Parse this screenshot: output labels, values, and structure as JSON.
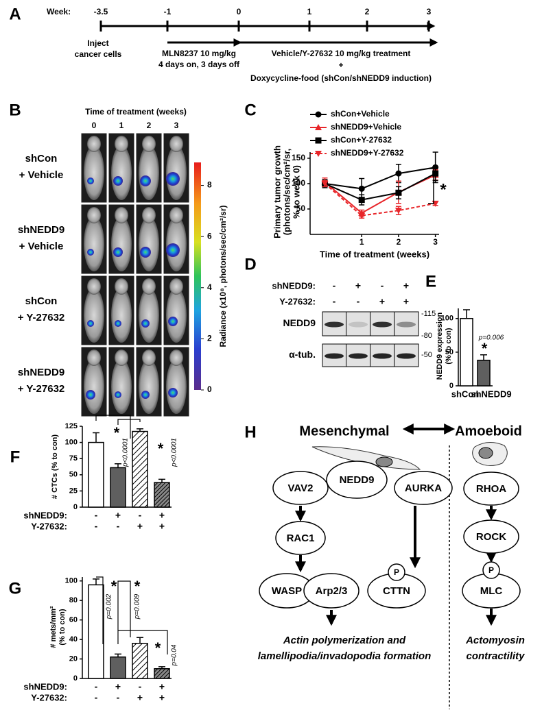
{
  "panel_labels": [
    "A",
    "B",
    "C",
    "D",
    "E",
    "F",
    "G",
    "H"
  ],
  "timeline": {
    "week_label": "Week:",
    "weeks": [
      "-3.5",
      "-1",
      "0",
      "1",
      "2",
      "3"
    ],
    "notes": [
      [
        "Inject",
        "cancer cells"
      ],
      [
        "MLN8237 10 mg/kg",
        "4 days on, 3 days off"
      ],
      [
        "Vehicle/Y-27632 10 mg/kg treatment",
        "+",
        "Doxycycline-food (shCon/shNEDD9 induction)"
      ]
    ]
  },
  "imaging": {
    "title": "Time of treatment (weeks)",
    "columns": [
      "0",
      "1",
      "2",
      "3"
    ],
    "rows": [
      [
        "shCon",
        "+ Vehicle"
      ],
      [
        "shNEDD9",
        "+ Vehicle"
      ],
      [
        "shCon",
        "+ Y-27632"
      ],
      [
        "shNEDD9",
        "+ Y-27632"
      ]
    ],
    "colorbar": {
      "label": "Radiance (x10⁸, photons/sec/cm²/sr)",
      "lim": [
        0,
        8.9
      ],
      "ticks": [
        0,
        2,
        4,
        6,
        8
      ]
    }
  },
  "tumor_growth": {
    "type": "line",
    "xlabel": "Time of treatment (weeks)",
    "ylabel": [
      "Primary tumor growth",
      "(photons/sec/cm²/sr,",
      "% to week 0)"
    ],
    "x": [
      0,
      1,
      2,
      3
    ],
    "xlim": [
      -0.4,
      3.1
    ],
    "xticks": [
      1,
      2,
      3
    ],
    "ylim": [
      0,
      162
    ],
    "yticks": [
      50,
      100,
      150
    ],
    "series": [
      {
        "name": "shCon+Vehicle",
        "color": "#000000",
        "marker": "circle",
        "dashed": false,
        "values": [
          100,
          90,
          120,
          132
        ],
        "errors": [
          8,
          20,
          18,
          30
        ]
      },
      {
        "name": "shNEDD9+Vehicle",
        "color": "#e8262a",
        "marker": "triangle-up",
        "dashed": false,
        "values": [
          103,
          42,
          83,
          117
        ],
        "errors": [
          8,
          6,
          22,
          10
        ]
      },
      {
        "name": "shCon+Y-27632",
        "color": "#000000",
        "marker": "square",
        "dashed": false,
        "values": [
          100,
          68,
          82,
          120
        ],
        "errors": [
          6,
          10,
          12,
          14
        ]
      },
      {
        "name": "shNEDD9+Y-27632",
        "color": "#e8262a",
        "marker": "triangle-down",
        "dashed": true,
        "values": [
          100,
          37,
          47,
          61
        ],
        "errors": [
          6,
          5,
          8,
          4
        ]
      }
    ],
    "significance": "*"
  },
  "western_blot": {
    "row_labels": [
      "shNEDD9:",
      "Y-27632:"
    ],
    "conditions": [
      [
        "-",
        "+",
        "-",
        "+"
      ],
      [
        "-",
        "-",
        "+",
        "+"
      ]
    ],
    "bands": [
      "NEDD9",
      "α-tub."
    ],
    "markers": [
      "-115",
      "-80",
      "-50"
    ]
  },
  "nedd9_expression": {
    "type": "bar",
    "ylabel": [
      "NEDD9 expression",
      "(% to con)"
    ],
    "categories": [
      "shCon",
      "shNEDD9"
    ],
    "values": [
      100,
      38
    ],
    "errors": [
      13,
      8
    ],
    "patterns": [
      "open",
      "solid"
    ],
    "ylim": [
      0,
      115
    ],
    "yticks": [
      0,
      50,
      100
    ],
    "annotations": [
      "p=0.006",
      "*"
    ]
  },
  "ctcs": {
    "type": "bar",
    "ylabel": [
      "# CTCs (% to con)"
    ],
    "row_labels": [
      "shNEDD9:",
      "Y-27632:"
    ],
    "conditions": [
      [
        "-",
        "+",
        "-",
        "+"
      ],
      [
        "-",
        "-",
        "+",
        "+"
      ]
    ],
    "values": [
      100,
      61,
      117,
      38
    ],
    "errors": [
      15,
      6,
      4,
      5
    ],
    "patterns": [
      "open",
      "solid",
      "hatched",
      "hatched-dense"
    ],
    "ylim": [
      0,
      125
    ],
    "yticks": [
      0,
      25,
      50,
      75,
      100,
      125
    ],
    "annotations": [
      "p<0.0001",
      "p<0.0001",
      "*",
      "*"
    ]
  },
  "metastases": {
    "type": "bar",
    "ylabel": [
      "# mets/mm²",
      "(% to con)"
    ],
    "row_labels": [
      "shNEDD9:",
      "Y-27632:"
    ],
    "conditions": [
      [
        "-",
        "+",
        "-",
        "+"
      ],
      [
        "-",
        "-",
        "+",
        "+"
      ]
    ],
    "values": [
      96,
      22,
      36,
      10
    ],
    "errors": [
      6,
      3,
      6,
      2
    ],
    "patterns": [
      "open",
      "solid",
      "hatched",
      "hatched-dense"
    ],
    "ylim": [
      0,
      104
    ],
    "yticks": [
      0,
      20,
      40,
      60,
      80,
      100
    ],
    "annotations": [
      "p=0.002",
      "p=0.009",
      "p=0.04",
      "*",
      "*",
      "*"
    ]
  },
  "pathways": {
    "mesenchymal": "Mesenchymal",
    "amoeboid": "Amoeboid",
    "nodes": [
      "NEDD9",
      "VAV2",
      "AURKA",
      "RAC1",
      "WASP",
      "Arp2/3",
      "CTTN",
      "P",
      "RHOA",
      "ROCK",
      "P",
      "MLC"
    ],
    "outcomes": [
      [
        "Actin polymerization and",
        "lamellipodia/invadopodia formation"
      ],
      [
        "Actomyosin",
        "contractility"
      ]
    ]
  }
}
